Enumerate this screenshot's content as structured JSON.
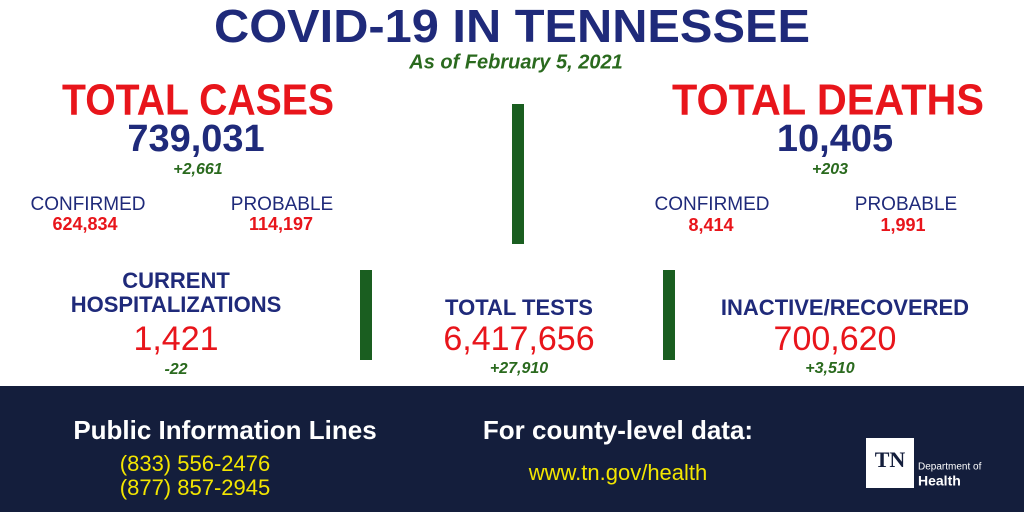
{
  "header": {
    "title": "COVID-19 IN TENNESSEE",
    "subtitle": "As of February 5, 2021"
  },
  "cases": {
    "label": "TOTAL CASES",
    "total": "739,031",
    "change": "+2,661",
    "confirmed_label": "CONFIRMED",
    "confirmed": "624,834",
    "probable_label": "PROBABLE",
    "probable": "114,197"
  },
  "deaths": {
    "label": "TOTAL DEATHS",
    "total": "10,405",
    "change": "+203",
    "confirmed_label": "CONFIRMED",
    "confirmed": "8,414",
    "probable_label": "PROBABLE",
    "probable": "1,991"
  },
  "hospitalizations": {
    "label_line1": "CURRENT",
    "label_line2": "HOSPITALIZATIONS",
    "value": "1,421",
    "change": "-22"
  },
  "tests": {
    "label": "TOTAL TESTS",
    "value": "6,417,656",
    "change": "+27,910"
  },
  "recovered": {
    "label": "INACTIVE/RECOVERED",
    "value": "700,620",
    "change": "+3,510"
  },
  "footer": {
    "phones_title": "Public Information Lines",
    "phones": [
      "(833) 556-2476",
      "(877) 857-2945"
    ],
    "county_title": "For county-level data:",
    "url": "www.tn.gov/health",
    "logo_mark": "TN",
    "logo_line1": "Department of",
    "logo_line2": "Health"
  }
}
